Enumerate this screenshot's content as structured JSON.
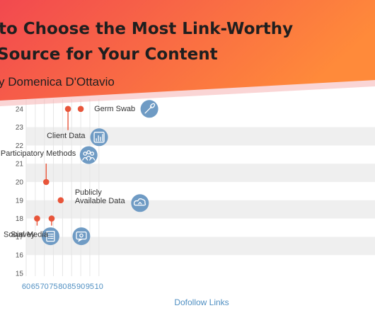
{
  "header": {
    "title_line1": "to Choose the Most Link-Worthy",
    "title_line2": "Source for Your Content",
    "byline": "y Domenica D'Ottavio"
  },
  "colors": {
    "banner_left": "#f2494f",
    "banner_right": "#ff8a3a",
    "point": "#e8553a",
    "icon_circle": "#6f9bc4",
    "band": "#efefef",
    "axis_label": "#4f8fc2"
  },
  "chart_data": {
    "type": "scatter",
    "xlabel": "Dofollow Links",
    "ylabel": "",
    "xlim": [
      60,
      100
    ],
    "ylim": [
      15,
      24
    ],
    "x_ticks": [
      "60",
      "65",
      "70",
      "75",
      "80",
      "85",
      "90",
      "95",
      "10"
    ],
    "y_ticks": [
      "15",
      "16",
      "17",
      "18",
      "19",
      "20",
      "21",
      "22",
      "23",
      "24"
    ],
    "grid": "alternating horizontal bands",
    "points": [
      {
        "label": "Survey",
        "x": 66,
        "y": 18,
        "icon": "document-list-icon"
      },
      {
        "label": "Social Media",
        "x": 74,
        "y": 18,
        "icon": "chat-screen-icon"
      },
      {
        "label": "Participatory Methods",
        "x": 71,
        "y": 20,
        "icon": "people-group-icon"
      },
      {
        "label": "Publicly Available Data",
        "x": 79,
        "y": 19,
        "icon": "cloud-data-icon"
      },
      {
        "label": "Client Data",
        "x": 83,
        "y": 24,
        "icon": "bar-chart-icon"
      },
      {
        "label": "Germ Swab",
        "x": 90,
        "y": 24,
        "icon": "swab-icon"
      }
    ]
  }
}
